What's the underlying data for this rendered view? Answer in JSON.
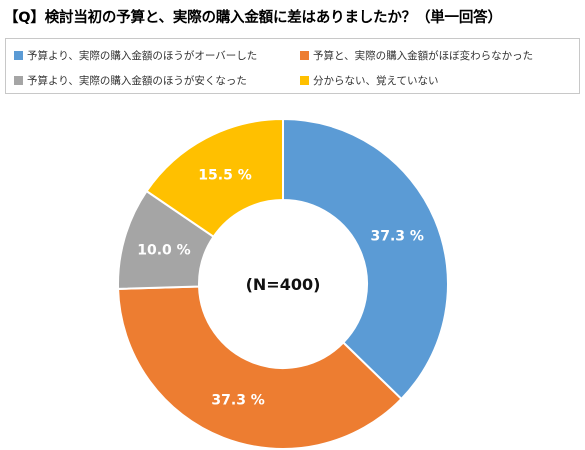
{
  "title": "【Q】検討当初の予算と、実際の購入金額に差はありましたか？（単一回答）",
  "chart_data": {
    "type": "pie",
    "donut": true,
    "center_text": "(N=400)",
    "categories": [
      "予算より、実際の購入金額のほうがオーバーした",
      "予算と、実際の購入金額がほぼ変わらなかった",
      "予算より、実際の購入金額のほうが安くなった",
      "分からない、覚えていない"
    ],
    "values": [
      37.3,
      37.3,
      10.0,
      15.5
    ],
    "value_labels": [
      "37.3 %",
      "37.3 %",
      "10.0 %",
      "15.5 %"
    ],
    "colors": [
      "#5B9BD5",
      "#ED7D31",
      "#A5A5A5",
      "#FFC000"
    ],
    "legend_position": "top"
  }
}
